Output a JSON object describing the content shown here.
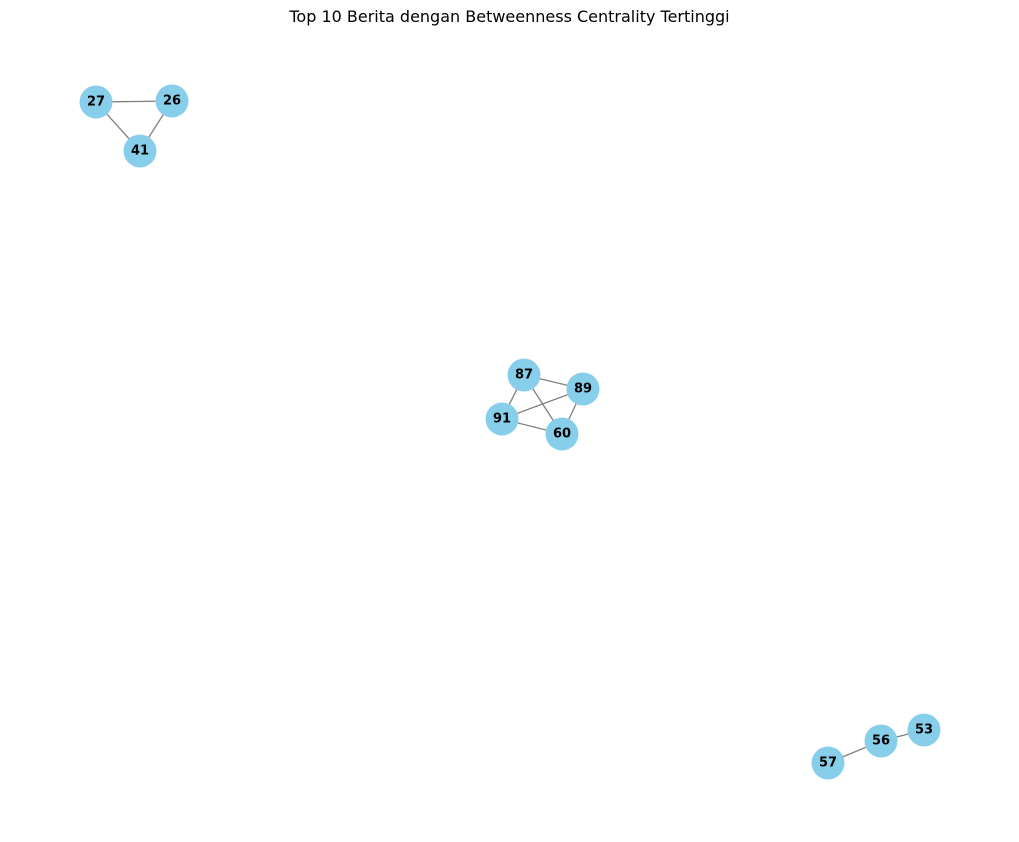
{
  "title": "Top 10 Berita dengan Betweenness Centrality Tertinggi",
  "colors": {
    "node_fill": "#87ceeb",
    "edge_stroke": "#808080",
    "label": "#000000",
    "background": "#ffffff"
  },
  "nodes": [
    {
      "id": "27"
    },
    {
      "id": "26"
    },
    {
      "id": "41"
    },
    {
      "id": "87"
    },
    {
      "id": "89"
    },
    {
      "id": "91"
    },
    {
      "id": "60"
    },
    {
      "id": "53"
    },
    {
      "id": "56"
    },
    {
      "id": "57"
    }
  ],
  "edges": [
    [
      "27",
      "26"
    ],
    [
      "27",
      "41"
    ],
    [
      "26",
      "41"
    ],
    [
      "87",
      "89"
    ],
    [
      "87",
      "91"
    ],
    [
      "87",
      "60"
    ],
    [
      "89",
      "91"
    ],
    [
      "89",
      "60"
    ],
    [
      "91",
      "60"
    ],
    [
      "53",
      "56"
    ],
    [
      "56",
      "57"
    ]
  ]
}
